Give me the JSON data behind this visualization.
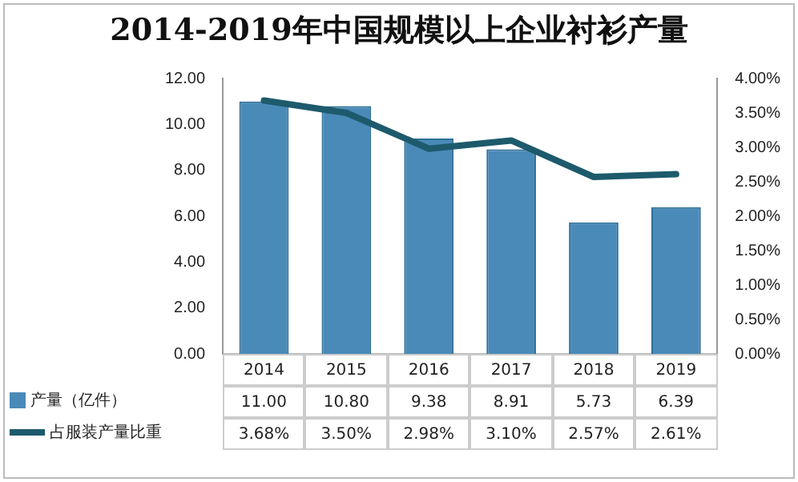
{
  "chart_data": {
    "type": "bar",
    "title": "2014-2019年中国规模以上企业衬衫产量",
    "categories": [
      "2014",
      "2015",
      "2016",
      "2017",
      "2018",
      "2019"
    ],
    "series": [
      {
        "name": "产量（亿件）",
        "color": "#4a8ab8",
        "values": [
          11.0,
          10.8,
          9.38,
          8.91,
          5.73,
          6.39
        ],
        "value_labels": [
          "11.00",
          "10.80",
          "9.38",
          "8.91",
          "5.73",
          "6.39"
        ]
      },
      {
        "name": "占服装产量比重",
        "type": "line",
        "axis": "y2",
        "color": "#1d5a6c",
        "values": [
          3.68,
          3.5,
          2.98,
          3.1,
          2.57,
          2.61
        ],
        "value_labels": [
          "3.68%",
          "3.50%",
          "2.98%",
          "3.10%",
          "2.57%",
          "2.61%"
        ]
      }
    ],
    "ylim": [
      0,
      12
    ],
    "yticks": [
      {
        "value": 0,
        "label": "0.00"
      },
      {
        "value": 2,
        "label": "2.00"
      },
      {
        "value": 4,
        "label": "4.00"
      },
      {
        "value": 6,
        "label": "6.00"
      },
      {
        "value": 8,
        "label": "8.00"
      },
      {
        "value": 10,
        "label": "10.00"
      },
      {
        "value": 12,
        "label": "12.00"
      }
    ],
    "y2lim": [
      0,
      4
    ],
    "y2ticks": [
      {
        "value": 0,
        "label": "0.00%"
      },
      {
        "value": 0.5,
        "label": "0.50%"
      },
      {
        "value": 1,
        "label": "1.00%"
      },
      {
        "value": 1.5,
        "label": "1.50%"
      },
      {
        "value": 2,
        "label": "2.00%"
      },
      {
        "value": 2.5,
        "label": "2.50%"
      },
      {
        "value": 3,
        "label": "3.00%"
      },
      {
        "value": 3.5,
        "label": "3.50%"
      },
      {
        "value": 4,
        "label": "4.00%"
      }
    ],
    "legend": "bottom",
    "marker": "none"
  }
}
